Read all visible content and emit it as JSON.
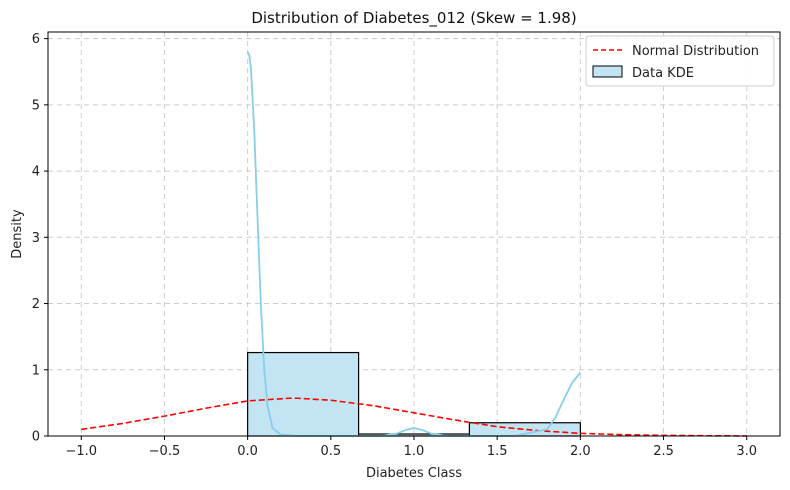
{
  "chart_data": {
    "type": "histogram",
    "title": "Distribution of Diabetes_012 (Skew = 1.98)",
    "xlabel": "Diabetes Class",
    "ylabel": "Density",
    "xlim": [
      -1.2,
      3.2
    ],
    "ylim": [
      0,
      6.1
    ],
    "x_ticks": [
      -1.0,
      -0.5,
      0.0,
      0.5,
      1.0,
      1.5,
      2.0,
      2.5,
      3.0
    ],
    "x_tick_labels": [
      "−1.0",
      "−0.5",
      "0.0",
      "0.5",
      "1.0",
      "1.5",
      "2.0",
      "2.5",
      "3.0"
    ],
    "y_ticks": [
      0,
      1,
      2,
      3,
      4,
      5,
      6
    ],
    "y_tick_labels": [
      "0",
      "1",
      "2",
      "3",
      "4",
      "5",
      "6"
    ],
    "grid": true,
    "legend_position": "top-right",
    "colors": {
      "bar_fill": "#c2e4f3",
      "bar_edge": "#000000",
      "kde_line": "#87ceeb",
      "normal_line": "#ff0000",
      "grid": "#cccccc"
    },
    "histogram": {
      "bins": [
        {
          "x0": 0.0,
          "x1": 0.667,
          "density": 1.26
        },
        {
          "x0": 0.667,
          "x1": 1.333,
          "density": 0.03
        },
        {
          "x0": 1.333,
          "x1": 2.0,
          "density": 0.2
        }
      ]
    },
    "series": [
      {
        "name": "Normal Distribution",
        "style": "dashed",
        "x": [
          -1.0,
          -0.75,
          -0.5,
          -0.25,
          0.0,
          0.25,
          0.3,
          0.5,
          0.75,
          1.0,
          1.25,
          1.5,
          1.75,
          2.0,
          2.25,
          2.5,
          2.75,
          3.0
        ],
        "y": [
          0.1,
          0.19,
          0.3,
          0.42,
          0.53,
          0.57,
          0.57,
          0.54,
          0.46,
          0.35,
          0.24,
          0.14,
          0.08,
          0.04,
          0.02,
          0.01,
          0.004,
          0.001
        ]
      },
      {
        "name": "Data KDE",
        "style": "solid",
        "x": [
          0.0,
          0.01,
          0.02,
          0.04,
          0.06,
          0.08,
          0.1,
          0.12,
          0.15,
          0.2,
          0.3,
          0.5,
          0.7,
          0.8,
          0.9,
          0.95,
          1.0,
          1.05,
          1.1,
          1.2,
          1.4,
          1.6,
          1.8,
          1.85,
          1.9,
          1.95,
          2.0
        ],
        "y": [
          5.8,
          5.75,
          5.55,
          4.6,
          3.25,
          1.95,
          1.0,
          0.45,
          0.12,
          0.02,
          0.0,
          0.0,
          0.0,
          0.0,
          0.04,
          0.09,
          0.12,
          0.09,
          0.04,
          0.0,
          0.0,
          0.0,
          0.1,
          0.28,
          0.55,
          0.8,
          0.96
        ]
      }
    ]
  }
}
